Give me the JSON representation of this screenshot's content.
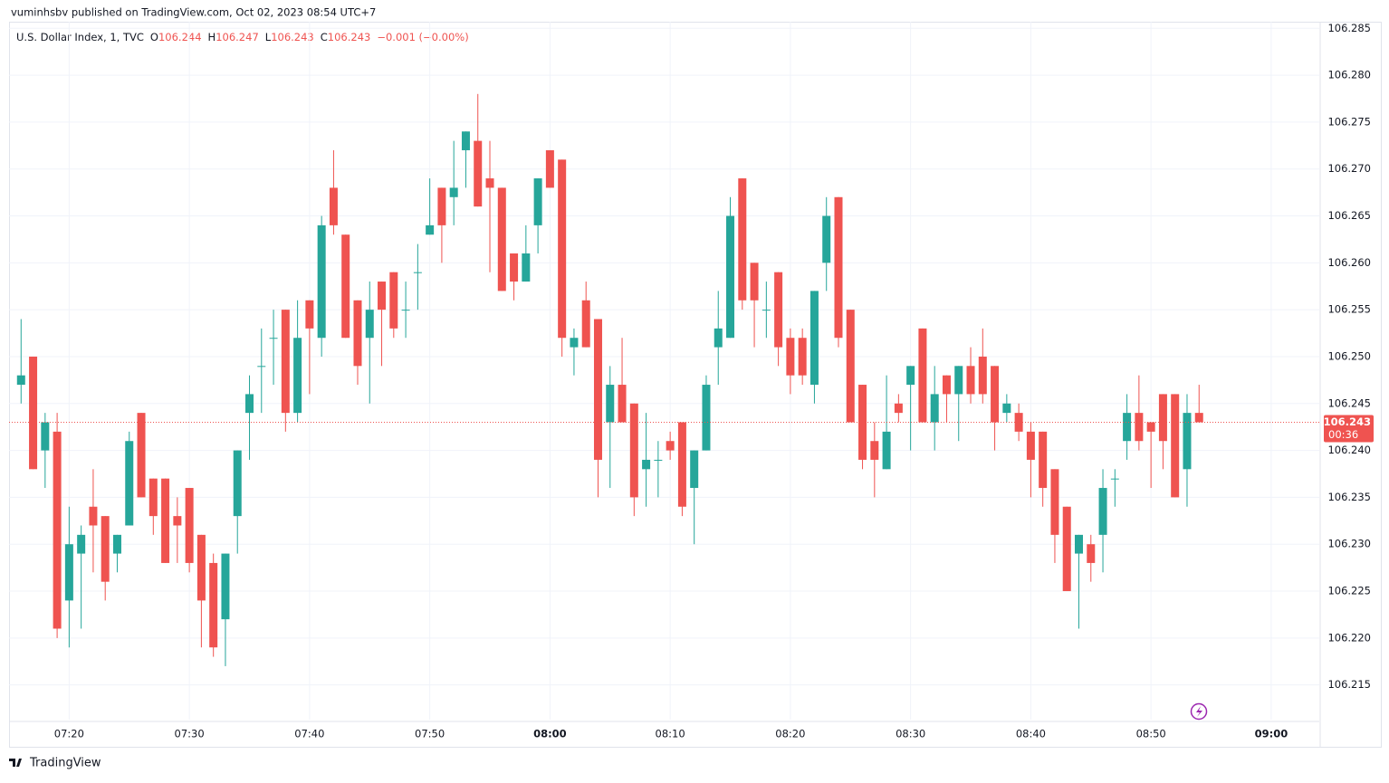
{
  "header": {
    "publisher": "vuminhsbv published on TradingView.com, Oct 02, 2023 08:54 UTC+7"
  },
  "footer": {
    "brand": "TradingView"
  },
  "chart_data": {
    "type": "candlestick",
    "legend": {
      "symbol": "U.S. Dollar Index, 1, TVC",
      "ohlc": [
        {
          "key": "O",
          "value": "106.244"
        },
        {
          "key": "H",
          "value": "106.247"
        },
        {
          "key": "L",
          "value": "106.243"
        },
        {
          "key": "C",
          "value": "106.243"
        }
      ],
      "change": "−0.001 (−0.00%)"
    },
    "up_color": "#26a69a",
    "down_color": "#ef5350",
    "x": [
      "07:16",
      "07:17",
      "07:18",
      "07:19",
      "07:20",
      "07:21",
      "07:22",
      "07:23",
      "07:24",
      "07:25",
      "07:26",
      "07:27",
      "07:28",
      "07:29",
      "07:30",
      "07:31",
      "07:32",
      "07:33",
      "07:34",
      "07:35",
      "07:36",
      "07:37",
      "07:38",
      "07:39",
      "07:40",
      "07:41",
      "07:42",
      "07:43",
      "07:44",
      "07:45",
      "07:46",
      "07:47",
      "07:48",
      "07:49",
      "07:50",
      "07:51",
      "07:52",
      "07:53",
      "07:54",
      "07:55",
      "07:56",
      "07:57",
      "07:58",
      "07:59",
      "08:00",
      "08:01",
      "08:02",
      "08:03",
      "08:04",
      "08:05",
      "08:06",
      "08:07",
      "08:08",
      "08:09",
      "08:10",
      "08:11",
      "08:12",
      "08:13",
      "08:14",
      "08:15",
      "08:16",
      "08:17",
      "08:18",
      "08:19",
      "08:20",
      "08:21",
      "08:22",
      "08:23",
      "08:24",
      "08:25",
      "08:26",
      "08:27",
      "08:28",
      "08:29",
      "08:30",
      "08:31",
      "08:32",
      "08:33",
      "08:34",
      "08:35",
      "08:36",
      "08:37",
      "08:38",
      "08:39",
      "08:40",
      "08:41",
      "08:42",
      "08:43",
      "08:44",
      "08:45",
      "08:46",
      "08:47",
      "08:48",
      "08:49",
      "08:50",
      "08:51",
      "08:52",
      "08:53",
      "08:54"
    ],
    "open": [
      106.247,
      106.25,
      106.24,
      106.242,
      106.224,
      106.229,
      106.234,
      106.233,
      106.229,
      106.232,
      106.244,
      106.237,
      106.237,
      106.233,
      106.236,
      106.231,
      106.228,
      106.222,
      106.233,
      106.244,
      106.249,
      106.252,
      106.255,
      106.244,
      106.256,
      106.252,
      106.268,
      106.263,
      106.256,
      106.252,
      106.258,
      106.259,
      106.255,
      106.259,
      106.263,
      106.268,
      106.267,
      106.272,
      106.273,
      106.269,
      106.268,
      106.261,
      106.258,
      106.264,
      106.272,
      106.271,
      106.251,
      106.256,
      106.254,
      106.243,
      106.247,
      106.245,
      106.238,
      106.239,
      106.241,
      106.243,
      106.236,
      106.24,
      106.251,
      106.252,
      106.269,
      106.26,
      106.255,
      106.259,
      106.252,
      106.252,
      106.247,
      106.26,
      106.267,
      106.255,
      106.247,
      106.241,
      106.238,
      106.245,
      106.247,
      106.253,
      106.243,
      106.248,
      106.246,
      106.249,
      106.25,
      106.249,
      106.244,
      106.244,
      106.242,
      106.242,
      106.238,
      106.234,
      106.229,
      106.23,
      106.231,
      106.237,
      106.241,
      106.244,
      106.243,
      106.246,
      106.246,
      106.238,
      106.244
    ],
    "high": [
      106.254,
      106.25,
      106.244,
      106.244,
      106.234,
      106.232,
      106.238,
      106.233,
      106.231,
      106.242,
      106.244,
      106.237,
      106.237,
      106.235,
      106.236,
      106.231,
      106.229,
      106.229,
      106.24,
      106.248,
      106.253,
      106.255,
      106.255,
      106.256,
      106.256,
      106.265,
      106.272,
      106.263,
      106.256,
      106.258,
      106.258,
      106.259,
      106.258,
      106.262,
      106.269,
      106.268,
      106.273,
      106.274,
      106.278,
      106.273,
      106.268,
      106.261,
      106.264,
      106.269,
      106.272,
      106.271,
      106.253,
      106.258,
      106.254,
      106.249,
      106.252,
      106.245,
      106.244,
      106.241,
      106.242,
      106.243,
      106.24,
      106.248,
      106.257,
      106.267,
      106.269,
      106.26,
      106.258,
      106.259,
      106.253,
      106.253,
      106.257,
      106.267,
      106.267,
      106.255,
      106.247,
      106.243,
      106.248,
      106.246,
      106.249,
      106.253,
      106.249,
      106.248,
      106.249,
      106.251,
      106.253,
      106.249,
      106.246,
      106.245,
      106.243,
      106.242,
      106.238,
      106.234,
      106.231,
      106.231,
      106.238,
      106.238,
      106.246,
      106.248,
      106.243,
      106.246,
      106.246,
      106.246,
      106.247
    ],
    "low": [
      106.245,
      106.238,
      106.236,
      106.22,
      106.219,
      106.221,
      106.227,
      106.224,
      106.227,
      106.232,
      106.235,
      106.231,
      106.228,
      106.228,
      106.227,
      106.219,
      106.218,
      106.217,
      106.229,
      106.239,
      106.244,
      106.247,
      106.242,
      106.243,
      106.246,
      106.25,
      106.263,
      106.252,
      106.247,
      106.245,
      106.249,
      106.252,
      106.252,
      106.255,
      106.263,
      106.26,
      106.264,
      106.268,
      106.266,
      106.259,
      106.257,
      106.256,
      106.258,
      106.261,
      106.268,
      106.25,
      106.248,
      106.251,
      106.235,
      106.236,
      106.243,
      106.233,
      106.234,
      106.235,
      106.239,
      106.233,
      106.23,
      106.24,
      106.247,
      106.252,
      106.255,
      106.251,
      106.252,
      106.249,
      106.246,
      106.247,
      106.245,
      106.257,
      106.251,
      106.243,
      106.238,
      106.235,
      106.238,
      106.243,
      106.24,
      106.243,
      106.24,
      106.243,
      106.241,
      106.245,
      106.245,
      106.24,
      106.243,
      106.241,
      106.235,
      106.234,
      106.228,
      106.225,
      106.221,
      106.226,
      106.227,
      106.234,
      106.239,
      106.24,
      106.236,
      106.238,
      106.235,
      106.234,
      106.243
    ],
    "close": [
      106.248,
      106.238,
      106.243,
      106.221,
      106.23,
      106.231,
      106.232,
      106.226,
      106.231,
      106.241,
      106.235,
      106.233,
      106.228,
      106.232,
      106.228,
      106.224,
      106.219,
      106.229,
      106.24,
      106.246,
      106.249,
      106.252,
      106.244,
      106.252,
      106.253,
      106.264,
      106.264,
      106.252,
      106.249,
      106.255,
      106.255,
      106.253,
      106.255,
      106.259,
      106.264,
      106.264,
      106.268,
      106.274,
      106.266,
      106.268,
      106.257,
      106.258,
      106.261,
      106.269,
      106.268,
      106.252,
      106.252,
      106.251,
      106.239,
      106.247,
      106.243,
      106.235,
      106.239,
      106.239,
      106.24,
      106.234,
      106.24,
      106.247,
      106.253,
      106.265,
      106.256,
      106.256,
      106.255,
      106.251,
      106.248,
      106.248,
      106.257,
      106.265,
      106.252,
      106.243,
      106.239,
      106.239,
      106.242,
      106.244,
      106.249,
      106.243,
      106.246,
      106.246,
      106.249,
      106.246,
      106.246,
      106.243,
      106.245,
      106.242,
      106.239,
      106.236,
      106.231,
      106.225,
      106.231,
      106.228,
      106.236,
      106.237,
      106.244,
      106.241,
      106.242,
      106.241,
      106.235,
      106.244,
      106.243
    ],
    "xlim": [
      "07:15",
      "09:04"
    ],
    "xticks": [
      "07:20",
      "07:30",
      "07:40",
      "07:50",
      "08:00",
      "08:10",
      "08:20",
      "08:30",
      "08:40",
      "08:50",
      "09:00"
    ],
    "ylim": [
      106.2113,
      106.2857
    ],
    "yticks": [
      106.215,
      {
        "value": 106.22,
        "label": "106.220"
      },
      106.225,
      {
        "value": 106.23,
        "label": "106.230"
      },
      106.235,
      {
        "value": 106.24,
        "label": "106.240"
      },
      106.245,
      {
        "value": 106.25,
        "label": "106.250"
      },
      106.255,
      {
        "value": 106.26,
        "label": "106.260"
      },
      106.265,
      {
        "value": 106.27,
        "label": "106.270"
      },
      106.275,
      {
        "value": 106.28,
        "label": "106.280"
      },
      106.285
    ],
    "grid": true,
    "last_price": {
      "value": 106.243,
      "label": "106.243",
      "countdown": "00:36"
    }
  }
}
